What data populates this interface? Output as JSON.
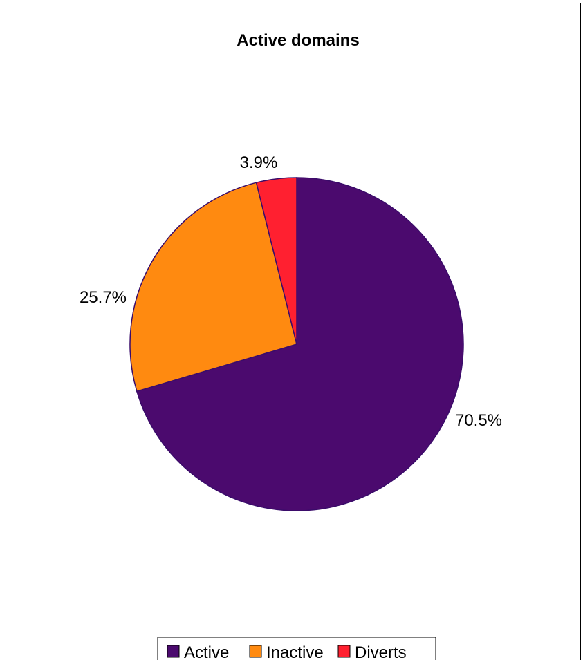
{
  "chart_data": {
    "type": "pie",
    "title": "Active domains",
    "series": [
      {
        "name": "Active",
        "value": 70.5,
        "label": "70.5%",
        "color": "#4b0a6e"
      },
      {
        "name": "Inactive",
        "value": 25.7,
        "label": "25.7%",
        "color": "#ff8a10"
      },
      {
        "name": "Diverts",
        "value": 3.9,
        "label": "3.9%",
        "color": "#ff2030"
      }
    ],
    "legend_position": "bottom",
    "slice_border_color": "#3a0c6a"
  }
}
